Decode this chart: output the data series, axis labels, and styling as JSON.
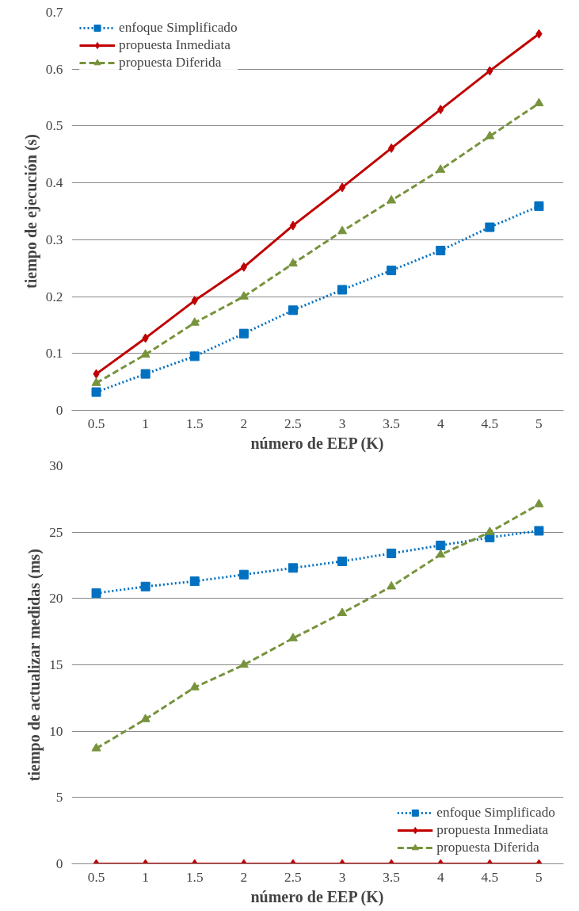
{
  "chart_data": [
    {
      "type": "line",
      "xlabel": "número de EEP (K)",
      "ylabel": "tiempo de ejecución (s)",
      "categories": [
        "0.5",
        "1",
        "1.5",
        "2",
        "2.5",
        "3",
        "3.5",
        "4",
        "4.5",
        "5"
      ],
      "ylim": [
        0,
        0.7
      ],
      "yticks": [
        0,
        0.1,
        0.2,
        0.3,
        0.4,
        0.5,
        0.6,
        0.7
      ],
      "grid": "y",
      "legend": "top left",
      "series": [
        {
          "name": "enfoque Simplificado",
          "color": "#0070c0",
          "marker": "square",
          "line_style": "dotted",
          "values": [
            0.032,
            0.064,
            0.095,
            0.135,
            0.176,
            0.212,
            0.246,
            0.281,
            0.322,
            0.359
          ]
        },
        {
          "name": "propuesta Inmediata",
          "color": "#c00000",
          "marker": "diamond",
          "line_style": "solid",
          "values": [
            0.064,
            0.127,
            0.193,
            0.252,
            0.325,
            0.392,
            0.461,
            0.529,
            0.597,
            0.662
          ]
        },
        {
          "name": "propuesta Diferida",
          "color": "#77933c",
          "marker": "triangle",
          "line_style": "dashed",
          "values": [
            0.048,
            0.098,
            0.154,
            0.2,
            0.258,
            0.315,
            0.369,
            0.423,
            0.482,
            0.54
          ]
        }
      ]
    },
    {
      "type": "line",
      "xlabel": "número de EEP (K)",
      "ylabel": "tiempo de actualizar medidas (ms)",
      "categories": [
        "0.5",
        "1",
        "1.5",
        "2",
        "2.5",
        "3",
        "3.5",
        "4",
        "4.5",
        "5"
      ],
      "ylim": [
        0,
        30
      ],
      "yticks": [
        0,
        5,
        10,
        15,
        20,
        25,
        30
      ],
      "grid": "y",
      "legend": "bottom right",
      "series": [
        {
          "name": "enfoque Simplificado",
          "color": "#0070c0",
          "marker": "square",
          "line_style": "dotted",
          "values": [
            20.4,
            20.9,
            21.3,
            21.8,
            22.3,
            22.8,
            23.4,
            24.0,
            24.6,
            25.1
          ]
        },
        {
          "name": "propuesta Inmediata",
          "color": "#c00000",
          "marker": "diamond",
          "line_style": "solid",
          "values": [
            0,
            0,
            0,
            0,
            0,
            0,
            0,
            0,
            0,
            0
          ]
        },
        {
          "name": "propuesta Diferida",
          "color": "#77933c",
          "marker": "triangle",
          "line_style": "dashed",
          "values": [
            8.7,
            10.9,
            13.3,
            15.0,
            17.0,
            18.9,
            20.9,
            23.3,
            25.0,
            27.1
          ]
        }
      ]
    }
  ]
}
